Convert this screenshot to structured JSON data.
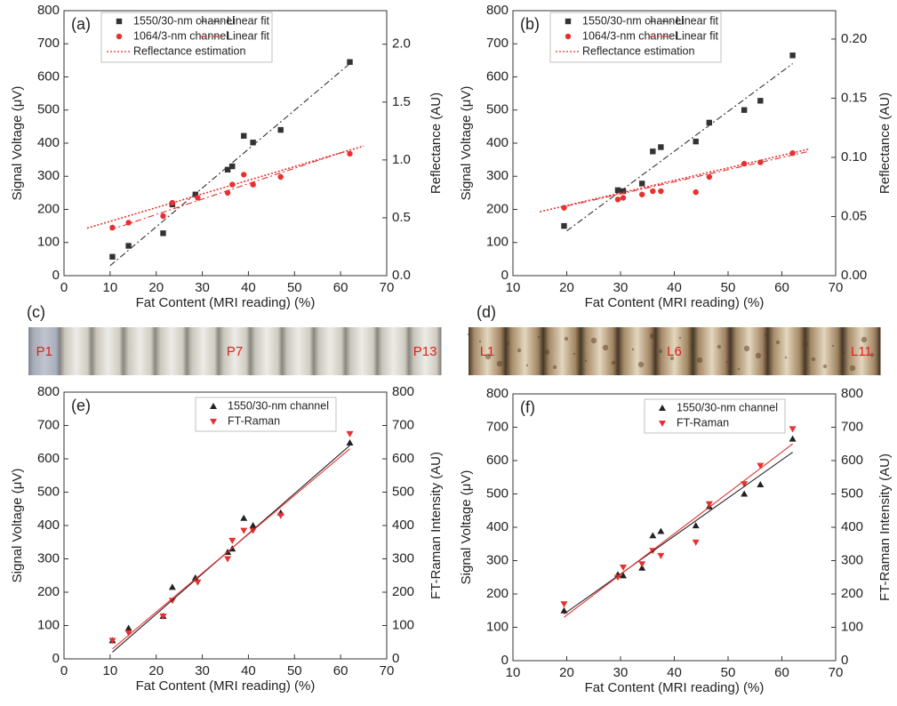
{
  "chart_data": [
    {
      "type": "scatter",
      "label": "(a)",
      "xlabel": "Fat Content (MRI reading) (%)",
      "ylabel": "Signal Voltage (μV)",
      "y2label": "Reflectance (AU)",
      "xlim": [
        0,
        70
      ],
      "xticks": [
        0,
        10,
        20,
        30,
        40,
        50,
        60,
        70
      ],
      "ylim": [
        0,
        800
      ],
      "yticks": [
        0,
        100,
        200,
        300,
        400,
        500,
        600,
        700,
        800
      ],
      "y2lim": [
        0,
        2.29
      ],
      "y2ticks": [
        {
          "value": 0,
          "label": "0.0"
        },
        0.5,
        {
          "value": 1,
          "label": "1.0"
        },
        1.5,
        {
          "value": 2,
          "label": "2.0"
        }
      ],
      "series": [
        {
          "name": "1550/30-nm channel",
          "color": "#333333",
          "marker": "square",
          "x": [
            10.5,
            14,
            21.5,
            23.5,
            28.5,
            35.5,
            36.5,
            39,
            41,
            47,
            62
          ],
          "values": [
            57,
            90,
            128,
            215,
            245,
            320,
            330,
            422,
            402,
            440,
            645
          ]
        },
        {
          "name": "Linear fit",
          "color": "#333333",
          "style": "dashdot",
          "x": [
            10,
            62
          ],
          "values": [
            30,
            640
          ]
        },
        {
          "name": "1064/3-nm channel",
          "color": "#e8312f",
          "marker": "circle",
          "x": [
            10.5,
            14,
            21.5,
            23.5,
            29,
            35.5,
            36.5,
            39,
            41,
            47,
            62
          ],
          "values": [
            145,
            160,
            180,
            220,
            235,
            250,
            275,
            305,
            275,
            298,
            368
          ]
        },
        {
          "name": "Linear fit",
          "color": "#e8312f",
          "style": "dashdot",
          "x": [
            10,
            62
          ],
          "values": [
            138,
            380
          ]
        },
        {
          "name": "Reflectance estimation",
          "color": "#e8312f",
          "style": "dotted",
          "axis": "y2",
          "x": [
            5,
            65
          ],
          "values": [
            0.41,
            1.12
          ]
        }
      ]
    },
    {
      "type": "scatter",
      "label": "(b)",
      "xlabel": "Fat Content (MRI reading) (%)",
      "ylabel": "Signal Voltage (μV)",
      "y2label": "Reflectance (AU)",
      "xlim": [
        10,
        70
      ],
      "xticks": [
        10,
        20,
        30,
        40,
        50,
        60,
        70
      ],
      "ylim": [
        0,
        800
      ],
      "yticks": [
        0,
        100,
        200,
        300,
        400,
        500,
        600,
        700,
        800
      ],
      "y2lim": [
        0,
        0.224
      ],
      "y2ticks": [
        {
          "value": 0,
          "label": "0.00"
        },
        0.05,
        {
          "value": 0.1,
          "label": "0.10"
        },
        0.15,
        {
          "value": 0.2,
          "label": "0.20"
        }
      ],
      "series": [
        {
          "name": "1550/30-nm channel",
          "color": "#333333",
          "marker": "square",
          "x": [
            19.5,
            29.5,
            30.5,
            34,
            36,
            37.5,
            44,
            46.5,
            53,
            56,
            62
          ],
          "values": [
            150,
            258,
            255,
            278,
            375,
            388,
            405,
            462,
            500,
            528,
            665
          ]
        },
        {
          "name": "Linear fit",
          "color": "#333333",
          "style": "dashdot",
          "x": [
            20,
            62
          ],
          "values": [
            135,
            640
          ]
        },
        {
          "name": "1064/3-nm channel",
          "color": "#e8312f",
          "marker": "circle",
          "x": [
            19.5,
            29.5,
            30.5,
            34,
            36,
            37.5,
            44,
            46.5,
            53,
            56,
            62
          ],
          "values": [
            205,
            230,
            235,
            245,
            255,
            255,
            252,
            298,
            338,
            342,
            370
          ]
        },
        {
          "name": "Linear fit",
          "color": "#e8312f",
          "style": "dashdot",
          "x": [
            20,
            65
          ],
          "values": [
            210,
            375
          ]
        },
        {
          "name": "Reflectance estimation",
          "color": "#e8312f",
          "style": "dotted",
          "axis": "y2",
          "x": [
            15,
            65
          ],
          "values": [
            0.054,
            0.107
          ]
        }
      ]
    },
    {
      "type": "scatter",
      "label": "(e)",
      "xlabel": "Fat Content (MRI reading) (%)",
      "ylabel": "Signal Voltage (μV)",
      "y2label": "FT-Raman Intensity (AU)",
      "xlim": [
        0,
        70
      ],
      "xticks": [
        0,
        10,
        20,
        30,
        40,
        50,
        60,
        70
      ],
      "ylim": [
        0,
        800
      ],
      "yticks": [
        0,
        100,
        200,
        300,
        400,
        500,
        600,
        700,
        800
      ],
      "y2lim": [
        0,
        800
      ],
      "y2ticks": [
        0,
        100,
        200,
        300,
        400,
        500,
        600,
        700,
        800
      ],
      "series": [
        {
          "name": "1550/30-nm channel",
          "color": "#222222",
          "marker": "triangle-up",
          "x": [
            10.5,
            14,
            21.5,
            23.5,
            28.5,
            35.5,
            36.5,
            39,
            41,
            47,
            62
          ],
          "values": [
            55,
            92,
            128,
            215,
            243,
            320,
            330,
            422,
            400,
            438,
            648
          ]
        },
        {
          "name": "FT-Raman",
          "color": "#e8312f",
          "marker": "triangle-down",
          "axis": "y2",
          "x": [
            10.5,
            14,
            21.5,
            23.5,
            29,
            35.5,
            36.5,
            39,
            41,
            47,
            62
          ],
          "values": [
            55,
            78,
            128,
            175,
            230,
            300,
            355,
            385,
            385,
            430,
            675
          ]
        },
        {
          "color": "#222222",
          "style": "solid",
          "x": [
            10.5,
            62
          ],
          "values": [
            20,
            640
          ]
        },
        {
          "color": "#e8312f",
          "style": "solid",
          "axis": "y2",
          "x": [
            10.5,
            62
          ],
          "values": [
            30,
            630
          ]
        }
      ]
    },
    {
      "type": "scatter",
      "label": "(f)",
      "xlabel": "Fat Content (MRI reading) (%)",
      "ylabel": "Signal Voltage (μV)",
      "y2label": "FT-Raman Intensity (AU)",
      "xlim": [
        10,
        70
      ],
      "xticks": [
        10,
        20,
        30,
        40,
        50,
        60,
        70
      ],
      "ylim": [
        0,
        800
      ],
      "yticks": [
        0,
        100,
        200,
        300,
        400,
        500,
        600,
        700,
        800
      ],
      "y2lim": [
        0,
        800
      ],
      "y2ticks": [
        0,
        100,
        200,
        300,
        400,
        500,
        600,
        700,
        800
      ],
      "series": [
        {
          "name": "1550/30-nm channel",
          "color": "#222222",
          "marker": "triangle-up",
          "x": [
            19.5,
            29.5,
            30.5,
            34,
            36,
            37.5,
            44,
            46.5,
            53,
            56,
            62
          ],
          "values": [
            150,
            258,
            255,
            278,
            375,
            388,
            405,
            462,
            500,
            528,
            665
          ]
        },
        {
          "name": "FT-Raman",
          "color": "#e8312f",
          "marker": "triangle-down",
          "axis": "y2",
          "x": [
            19.5,
            29.5,
            30.5,
            34,
            36,
            37.5,
            44,
            46.5,
            53,
            56,
            62
          ],
          "values": [
            170,
            250,
            280,
            290,
            330,
            315,
            355,
            470,
            530,
            585,
            695
          ]
        },
        {
          "color": "#222222",
          "style": "solid",
          "x": [
            19.5,
            62
          ],
          "values": [
            140,
            625
          ]
        },
        {
          "color": "#e8312f",
          "style": "solid",
          "axis": "y2",
          "x": [
            19.5,
            62
          ],
          "values": [
            130,
            650
          ]
        }
      ]
    }
  ],
  "photos": [
    {
      "label": "(c)",
      "marks": [
        "P1",
        "P7",
        "P13"
      ]
    },
    {
      "label": "(d)",
      "marks": [
        "L1",
        "L6",
        "L11"
      ]
    }
  ]
}
